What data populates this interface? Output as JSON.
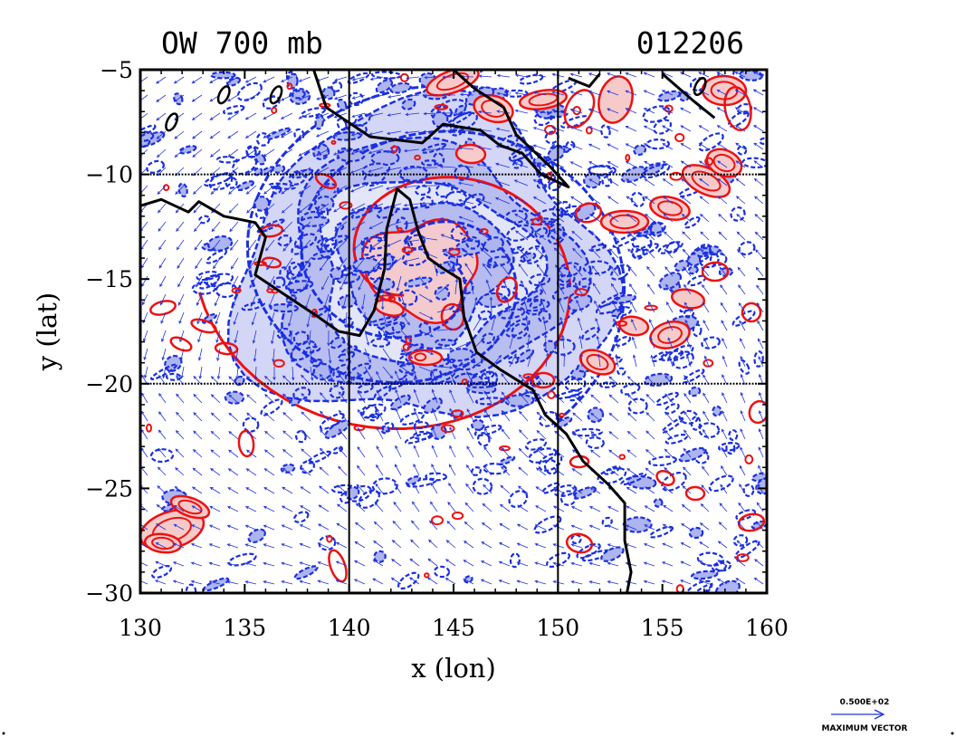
{
  "chart_data": {
    "type": "contour",
    "title_left": "OW 700 mb",
    "title_right": "012206",
    "xlabel": "x (lon)",
    "ylabel": "y (lat)",
    "xlim": [
      130,
      160
    ],
    "ylim": [
      -30,
      -5
    ],
    "x_ticks": [
      130,
      135,
      140,
      145,
      150,
      155,
      160
    ],
    "y_ticks": [
      -5,
      -10,
      -15,
      -20,
      -25,
      -30
    ],
    "x_tick_labels": [
      "130",
      "135",
      "140",
      "145",
      "150",
      "155",
      "160"
    ],
    "y_tick_labels": [
      "−5",
      "−10",
      "−15",
      "−20",
      "−25",
      "−30"
    ],
    "gridlines_x": [
      140,
      150
    ],
    "gridlines_y": [
      -10,
      -20
    ],
    "vector_key": {
      "magnitude_label": "0.500E+02",
      "caption": "MAXIMUM VECTOR"
    },
    "colors": {
      "positive_line": "#ee1111",
      "positive_fill": "#f7caca",
      "negative_line": "#1a2fe0",
      "negative_fill": "#aeb4ee",
      "vector": "#2233dd",
      "coastline": "#000000"
    },
    "vortex_center": [
      143.5,
      -14.5
    ],
    "coastline_lonlat": [
      [
        [
          130,
          -11.5
        ],
        [
          131,
          -11.2
        ],
        [
          132.3,
          -11.8
        ],
        [
          132.8,
          -11.3
        ],
        [
          134,
          -12
        ],
        [
          135.5,
          -12.3
        ],
        [
          136,
          -13
        ],
        [
          135.5,
          -14.8
        ],
        [
          137,
          -15.8
        ],
        [
          138.5,
          -16.8
        ],
        [
          139.5,
          -17.5
        ],
        [
          140.5,
          -17.7
        ],
        [
          141.2,
          -16.5
        ],
        [
          141.7,
          -14.5
        ],
        [
          141.8,
          -12.6
        ],
        [
          142.3,
          -10.7
        ],
        [
          142.9,
          -11.2
        ],
        [
          143.3,
          -12.7
        ],
        [
          143.8,
          -14
        ],
        [
          144.5,
          -14.5
        ],
        [
          145.3,
          -15
        ],
        [
          145.5,
          -16.8
        ],
        [
          146.1,
          -18.5
        ],
        [
          147.2,
          -19.3
        ],
        [
          148.8,
          -20.3
        ],
        [
          149.4,
          -21.5
        ],
        [
          150.4,
          -22.4
        ],
        [
          151.2,
          -23.7
        ],
        [
          152.4,
          -24.8
        ],
        [
          153.2,
          -25.7
        ],
        [
          153.2,
          -27.5
        ],
        [
          153.5,
          -29
        ],
        [
          153.3,
          -30
        ]
      ],
      [
        [
          138.3,
          -5
        ],
        [
          138.9,
          -6.8
        ],
        [
          141,
          -8.2
        ],
        [
          143.5,
          -8.5
        ],
        [
          144.5,
          -7.6
        ],
        [
          146.3,
          -7.9
        ],
        [
          147.2,
          -8.6
        ],
        [
          148.3,
          -9
        ],
        [
          149.2,
          -10
        ],
        [
          150.5,
          -10.6
        ],
        [
          149.6,
          -9.6
        ],
        [
          148,
          -8.1
        ],
        [
          147.4,
          -6.8
        ],
        [
          146,
          -5.9
        ],
        [
          145,
          -5
        ]
      ],
      [
        [
          150.5,
          -5.4
        ],
        [
          151.5,
          -5.8
        ],
        [
          152,
          -5.2
        ]
      ],
      [
        [
          155,
          -5.2
        ],
        [
          156.5,
          -6.5
        ],
        [
          157.5,
          -7.3
        ]
      ]
    ]
  }
}
